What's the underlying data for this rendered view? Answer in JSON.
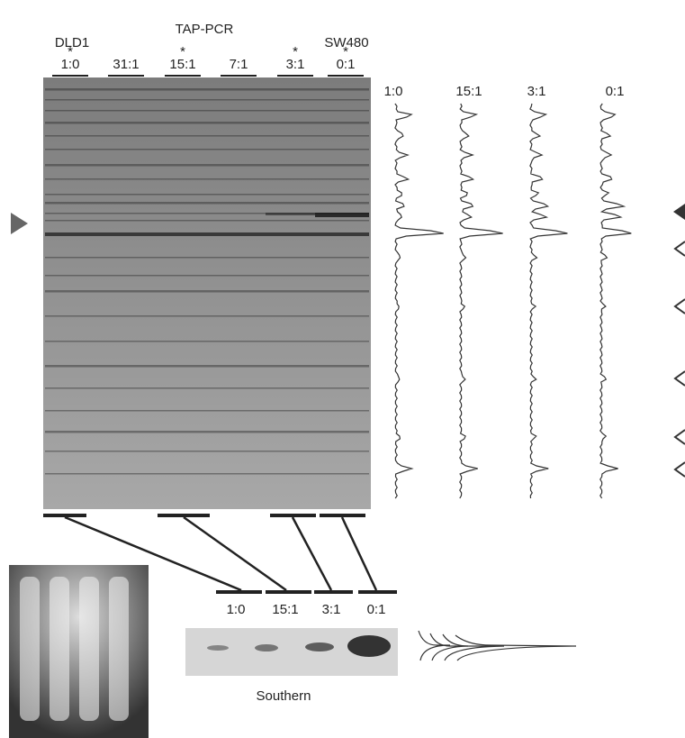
{
  "header": {
    "title": "TAP-PCR",
    "left_label": "DLD1",
    "right_label": "SW480"
  },
  "lanes": [
    {
      "label": "1:0",
      "marker": "*"
    },
    {
      "label": "31:1"
    },
    {
      "label": "15:1",
      "marker": "*"
    },
    {
      "label": "7:1"
    },
    {
      "label": "3:1",
      "marker": "*"
    },
    {
      "label": "0:1",
      "marker": "*"
    }
  ],
  "densitometry": {
    "labels": [
      "1:0",
      "15:1",
      "3:1",
      "0:1"
    ]
  },
  "southern": {
    "lanes": [
      "1:0",
      "15:1",
      "3:1",
      "0:1"
    ],
    "title": "Southern"
  }
}
